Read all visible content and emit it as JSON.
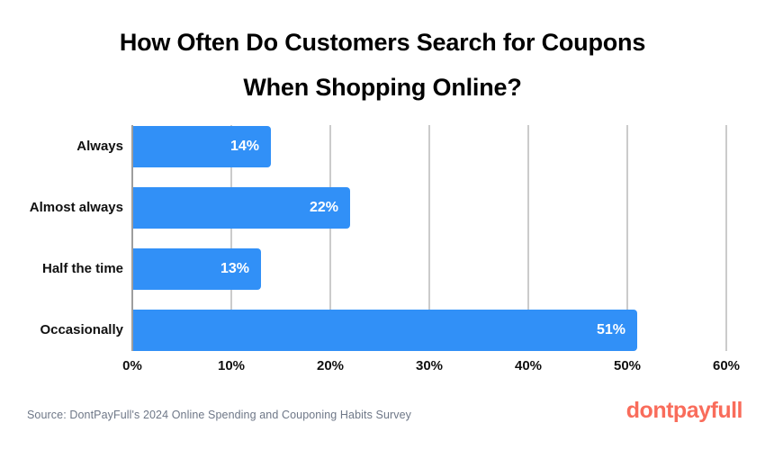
{
  "header": {
    "title_line1": "How Often Do Customers Search for Coupons",
    "title_line2": "When Shopping Online?"
  },
  "chart_data": {
    "type": "bar",
    "orientation": "horizontal",
    "title": "How Often Do Customers Search for Coupons When Shopping Online?",
    "categories": [
      "Always",
      "Almost always",
      "Half the time",
      "Occasionally"
    ],
    "values": [
      14,
      22,
      13,
      51
    ],
    "value_labels": [
      "14%",
      "22%",
      "13%",
      "51%"
    ],
    "xlabel": "",
    "ylabel": "",
    "xlim": [
      0,
      60
    ],
    "x_ticks": [
      "0%",
      "10%",
      "20%",
      "30%",
      "40%",
      "50%",
      "60%"
    ],
    "grid": true,
    "legend": false,
    "bar_color": "#3190f7",
    "gridline_color": "#cbcbcb",
    "axis_line_color": "#9e9e9e"
  },
  "footer": {
    "source": "Source: DontPayFull's 2024 Online Spending and Couponing Habits Survey",
    "logo_text": "dontpayfull",
    "logo_color": "#f96c5b"
  }
}
